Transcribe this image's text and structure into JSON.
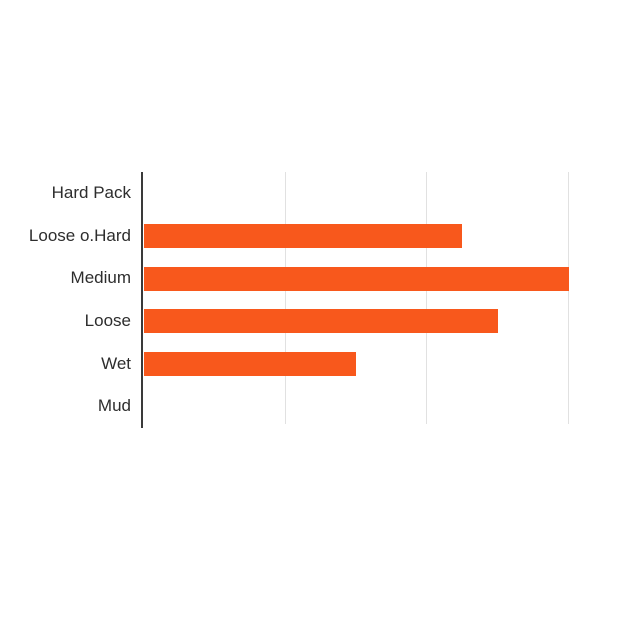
{
  "chart_data": {
    "type": "bar",
    "orientation": "horizontal",
    "title": "",
    "xlabel": "",
    "ylabel": "",
    "categories": [
      "Hard Pack",
      "Loose o.Hard",
      "Medium",
      "Loose",
      "Wet",
      "Mud"
    ],
    "values": [
      0,
      2.25,
      3,
      2.5,
      1.5,
      0
    ],
    "xlim": [
      0,
      3.3
    ],
    "gridlines_x": [
      1,
      2,
      3
    ],
    "tick_labels_visible": false,
    "legend_position": "none",
    "grid": "vertical-only",
    "colors": {
      "bar": "#f8581c",
      "axis": "#3a3a3a",
      "gridline": "#e1e1e1",
      "label": "#2d2d2d",
      "background": "#ffffff"
    }
  }
}
